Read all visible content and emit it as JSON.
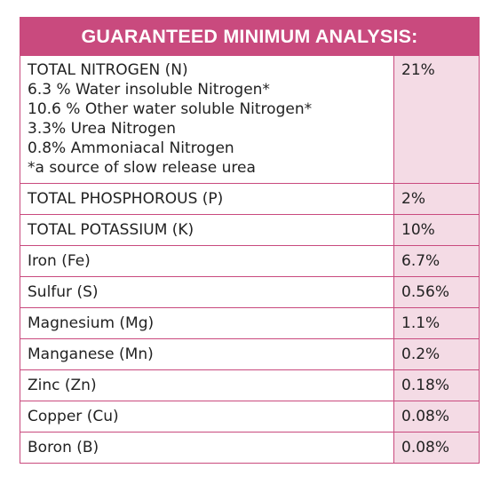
{
  "title": "GUARANTEED MINIMUM ANALYSIS:",
  "nitrogen": {
    "label": "TOTAL NITROGEN (N)",
    "value": "21%",
    "details": [
      "6.3 % Water insoluble Nitrogen*",
      "10.6 % Other water soluble Nitrogen*",
      "3.3% Urea Nitrogen",
      "0.8% Ammoniacal Nitrogen",
      "*a source of slow release urea"
    ]
  },
  "rows": [
    {
      "label": "TOTAL PHOSPHOROUS (P)",
      "value": "2%"
    },
    {
      "label": "TOTAL POTASSIUM (K)",
      "value": "10%"
    },
    {
      "label": "Iron (Fe)",
      "value": "6.7%"
    },
    {
      "label": "Sulfur (S)",
      "value": "0.56%"
    },
    {
      "label": "Magnesium (Mg)",
      "value": "1.1%"
    },
    {
      "label": "Manganese (Mn)",
      "value": "0.2%"
    },
    {
      "label": "Zinc (Zn)",
      "value": "0.18%"
    },
    {
      "label": "Copper (Cu)",
      "value": "0.08%"
    },
    {
      "label": "Boron (B)",
      "value": "0.08%"
    }
  ],
  "colors": {
    "accent": "#c94a7e",
    "value_bg": "#f4dbe5",
    "text": "#222222"
  }
}
